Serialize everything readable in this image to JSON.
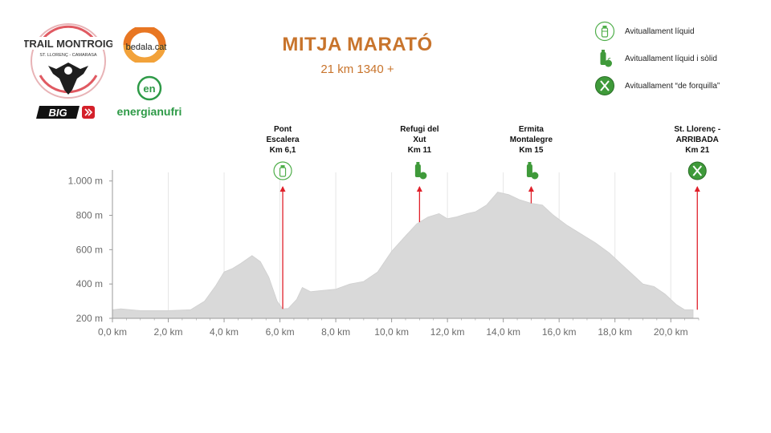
{
  "header": {
    "title": "MITJA MARATÓ",
    "subtitle": "21 km 1340 +"
  },
  "logos": {
    "trail_top": "TRAIL MONTROIG",
    "trail_sub": "ST. LLORENÇ - CAMARASA",
    "big": "BIG",
    "bedala": "bedala.cat",
    "energia_mark": "en",
    "energia": "energianufri"
  },
  "legend": [
    {
      "icon": "water-bottle-icon",
      "label": "Avituallament líquid"
    },
    {
      "icon": "bottle-fruit-icon",
      "label": "Avituallament líquid i sòlid"
    },
    {
      "icon": "fork-knife-icon",
      "label": "Avituallament “de forquilla”"
    }
  ],
  "colors": {
    "title": "#c8742c",
    "profile_fill": "#d9d9d9",
    "marker_line": "#e0202a",
    "aid_green": "#3f9a3a",
    "axis": "#9a9a9a"
  },
  "chart_data": {
    "type": "area",
    "title": "MITJA MARATÓ",
    "subtitle": "21 km 1340 +",
    "xlabel": "",
    "ylabel": "",
    "x_unit": "km",
    "y_unit": "m",
    "xlim": [
      0,
      21
    ],
    "ylim": [
      200,
      1050
    ],
    "x_ticks": [
      0,
      2,
      4,
      6,
      8,
      10,
      12,
      14,
      16,
      18,
      20
    ],
    "x_tick_labels": [
      "0,0 km",
      "2,0 km",
      "4,0 km",
      "6,0 km",
      "8,0 km",
      "10,0 km",
      "12,0 km",
      "14,0 km",
      "16,0 km",
      "18,0 km",
      "20,0 km"
    ],
    "y_ticks": [
      200,
      400,
      600,
      800,
      1000
    ],
    "y_tick_labels": [
      "200 m",
      "400 m",
      "600 m",
      "800 m",
      "1.000 m"
    ],
    "grid": "vertical",
    "series": [
      {
        "x": [
          0,
          0.3,
          1,
          2,
          2.8,
          3.3,
          3.7,
          4.0,
          4.3,
          4.6,
          5.0,
          5.3,
          5.6,
          5.9,
          6.1,
          6.3,
          6.6,
          6.8,
          7.1,
          7.4,
          8.0,
          8.5,
          9.0,
          9.5,
          10.0,
          10.5,
          10.9,
          11.3,
          11.7,
          12.0,
          12.3,
          12.7,
          13.0,
          13.4,
          13.8,
          14.2,
          14.6,
          15.0,
          15.4,
          15.8,
          16.3,
          16.8,
          17.3,
          17.8,
          18.2,
          18.6,
          19.0,
          19.4,
          19.8,
          20.2,
          20.5,
          20.8
        ],
        "y": [
          250,
          255,
          245,
          245,
          250,
          300,
          390,
          470,
          490,
          520,
          565,
          530,
          440,
          300,
          255,
          258,
          310,
          380,
          355,
          360,
          370,
          400,
          415,
          470,
          590,
          680,
          750,
          790,
          810,
          780,
          790,
          810,
          820,
          860,
          935,
          920,
          890,
          870,
          860,
          800,
          740,
          690,
          640,
          580,
          520,
          460,
          400,
          385,
          340,
          280,
          250,
          250
        ]
      }
    ],
    "markers": [
      {
        "km": 6.1,
        "name": "Pont Escalera",
        "label": "Km 6,1",
        "type": "water-bottle-icon"
      },
      {
        "km": 11,
        "name": "Refugi del Xut",
        "label": "Km 11",
        "type": "bottle-fruit-icon"
      },
      {
        "km": 15,
        "name": "Ermita Montalegre",
        "label": "Km 15",
        "type": "bottle-fruit-icon"
      },
      {
        "km": 21,
        "name": "St. Llorenç - ARRIBADA",
        "label": "Km 21",
        "type": "fork-knife-icon"
      }
    ]
  }
}
